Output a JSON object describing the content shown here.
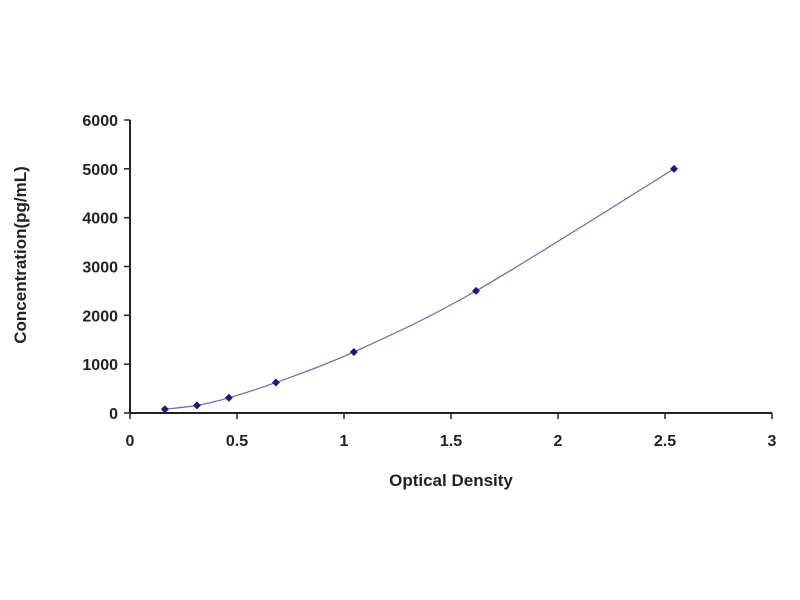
{
  "chart_data": {
    "type": "scatter",
    "title": "",
    "xlabel": "Optical Density",
    "ylabel": "Concentration(pg/mL)",
    "xlim": [
      0,
      3
    ],
    "ylim": [
      0,
      6000
    ],
    "xticks": [
      "0",
      "0.5",
      "1",
      "1.5",
      "2",
      "2.5",
      "3"
    ],
    "yticks": [
      "0",
      "1000",
      "2000",
      "3000",
      "4000",
      "5000",
      "6000"
    ],
    "grid": false,
    "legend": "none",
    "fit_line": true,
    "colors": {
      "points": "#1a1a7a",
      "line": "#6a6aa8",
      "axis": "#222222"
    },
    "x": [
      0.163,
      0.313,
      0.462,
      0.682,
      1.046,
      1.617,
      2.542
    ],
    "y": [
      78,
      156,
      312,
      625,
      1250,
      2500,
      5000
    ]
  }
}
